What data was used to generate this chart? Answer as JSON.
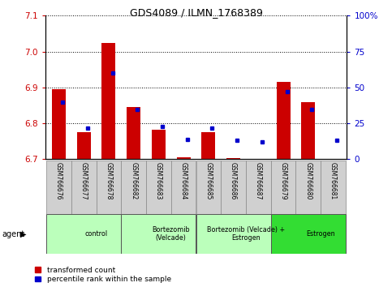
{
  "title": "GDS4089 / ILMN_1768389",
  "samples": [
    "GSM766676",
    "GSM766677",
    "GSM766678",
    "GSM766682",
    "GSM766683",
    "GSM766684",
    "GSM766685",
    "GSM766686",
    "GSM766687",
    "GSM766679",
    "GSM766680",
    "GSM766681"
  ],
  "red_values": [
    6.895,
    6.775,
    7.025,
    6.845,
    6.782,
    6.705,
    6.775,
    6.703,
    6.702,
    6.915,
    6.86,
    6.702
  ],
  "blue_pct": [
    40,
    22,
    60,
    35,
    23,
    14,
    22,
    13,
    12,
    47,
    35,
    13
  ],
  "y_min": 6.7,
  "y_max": 7.1,
  "y_ticks_left": [
    6.7,
    6.8,
    6.9,
    7.0,
    7.1
  ],
  "y_ticks_right": [
    0,
    25,
    50,
    75,
    100
  ],
  "bar_color": "#cc0000",
  "dot_color": "#0000cc",
  "left_tick_color": "#cc0000",
  "right_tick_color": "#0000cc",
  "sample_box_color": "#d0d0d0",
  "groups": [
    {
      "label": "control",
      "start": 0,
      "end": 3,
      "color": "#bbffbb"
    },
    {
      "label": "Bortezomib\n(Velcade)",
      "start": 3,
      "end": 6,
      "color": "#bbffbb"
    },
    {
      "label": "Bortezomib (Velcade) +\nEstrogen",
      "start": 6,
      "end": 9,
      "color": "#bbffbb"
    },
    {
      "label": "Estrogen",
      "start": 9,
      "end": 12,
      "color": "#33dd33"
    }
  ],
  "legend_labels": [
    "transformed count",
    "percentile rank within the sample"
  ],
  "bar_width": 0.55
}
